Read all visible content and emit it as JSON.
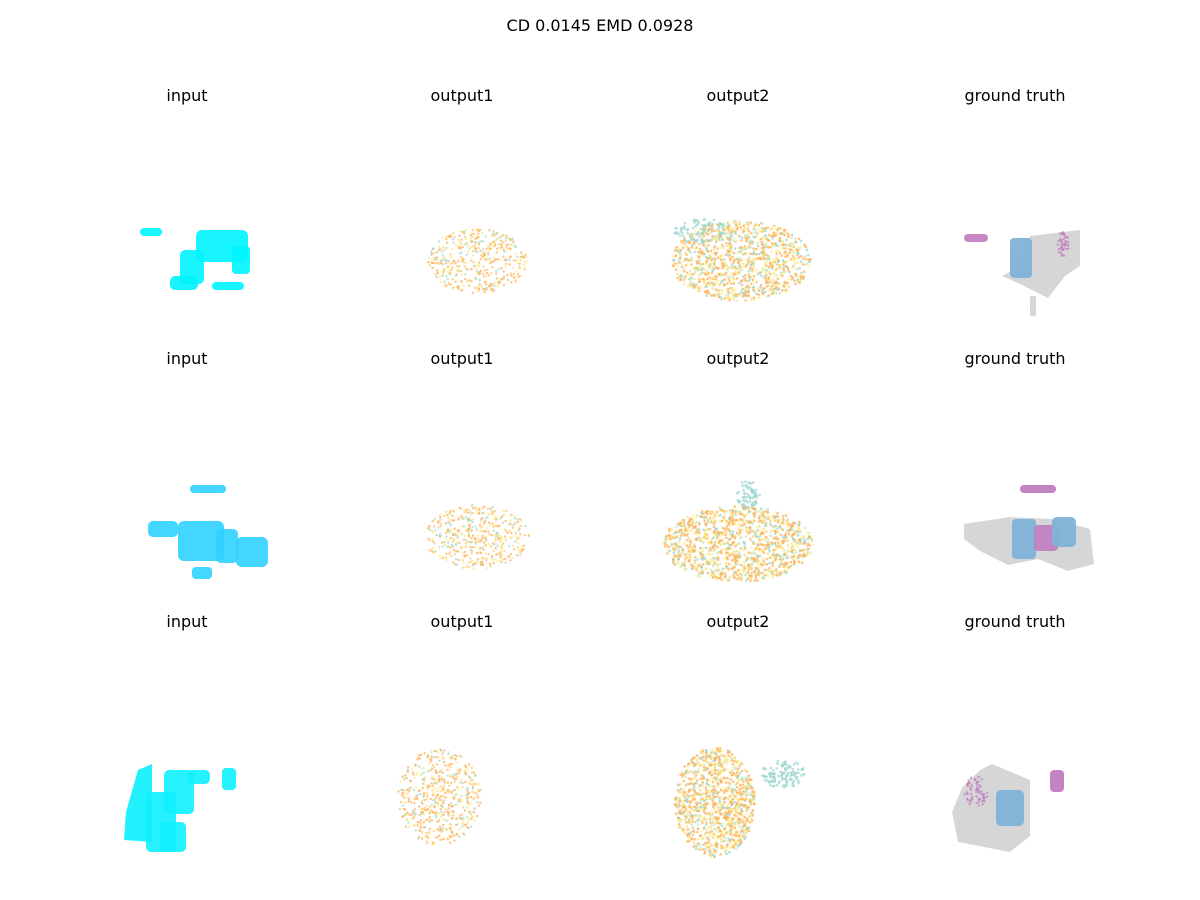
{
  "figure": {
    "title": "CD 0.0145  EMD 0.0928"
  },
  "rows": [
    {
      "panels": [
        {
          "label": "input",
          "kind": "input",
          "color": "#00f4ff",
          "seed": 11
        },
        {
          "label": "output1",
          "kind": "output1",
          "color": "#ffb055",
          "seed": 12
        },
        {
          "label": "output2",
          "kind": "output2",
          "color": "#ffb055",
          "seed": 13
        },
        {
          "label": "ground truth",
          "kind": "gt",
          "color": "#d6d6d6",
          "seed": 14
        }
      ]
    },
    {
      "panels": [
        {
          "label": "input",
          "kind": "input",
          "color": "#2fd2ff",
          "seed": 21
        },
        {
          "label": "output1",
          "kind": "output1",
          "color": "#ffb055",
          "seed": 22
        },
        {
          "label": "output2",
          "kind": "output2",
          "color": "#ffb055",
          "seed": 23
        },
        {
          "label": "ground truth",
          "kind": "gt",
          "color": "#d6d6d6",
          "seed": 24
        }
      ]
    },
    {
      "panels": [
        {
          "label": "input",
          "kind": "input",
          "color": "#0ef0ff",
          "seed": 31
        },
        {
          "label": "output1",
          "kind": "output1",
          "color": "#ffb055",
          "seed": 32
        },
        {
          "label": "output2",
          "kind": "output2",
          "color": "#ffb055",
          "seed": 33
        },
        {
          "label": "ground truth",
          "kind": "gt",
          "color": "#d6d6d6",
          "seed": 34
        }
      ]
    }
  ],
  "palette": {
    "accent_blue": "#7fb2d8",
    "accent_purple": "#c07cc0",
    "teal": "#9ed7cf",
    "yellow": "#ffeb7a"
  }
}
